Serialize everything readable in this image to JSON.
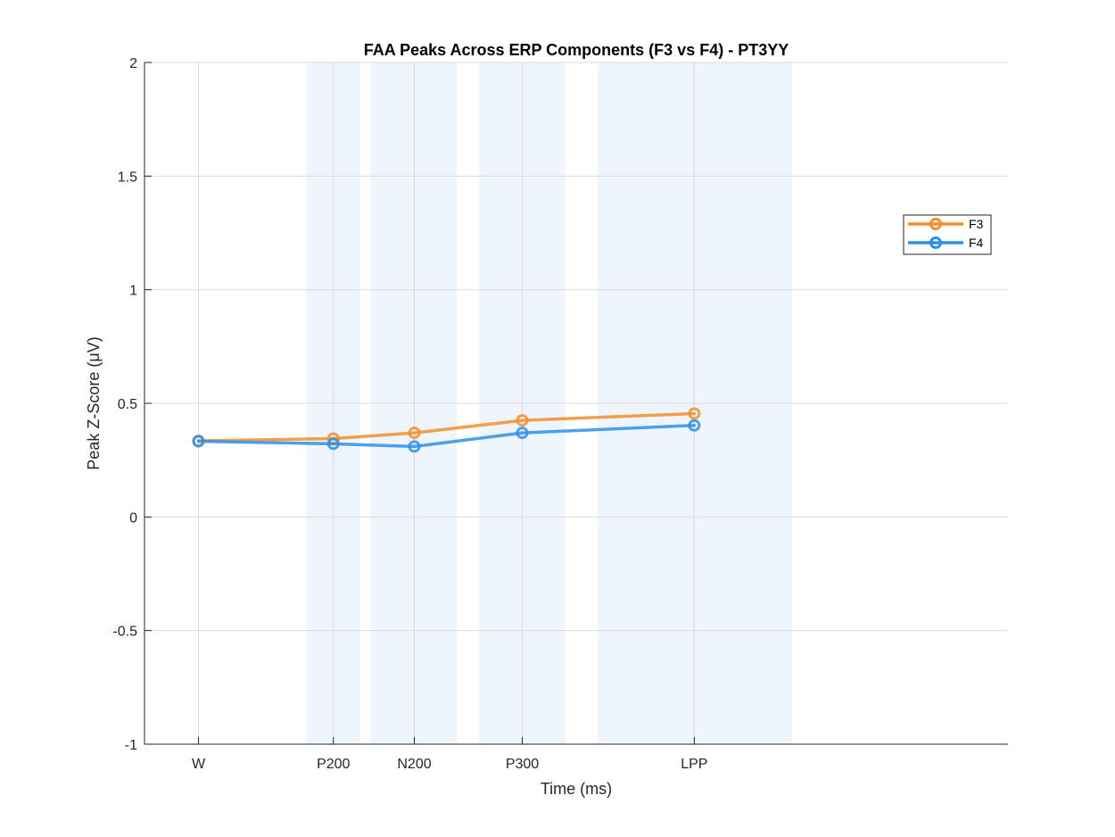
{
  "chart_data": {
    "type": "line",
    "title": "FAA Peaks Across ERP Components (F3 vs F4) - PT3YY",
    "xlabel": "Time (ms)",
    "ylabel": "Peak Z-Score (μV)",
    "categories": [
      "W",
      "P200",
      "N200",
      "P300",
      "LPP"
    ],
    "x": [
      0,
      200,
      320,
      480,
      735
    ],
    "xlim": [
      -80,
      1200
    ],
    "ylim": [
      -1,
      2
    ],
    "yticks": [
      -1,
      -0.5,
      0,
      0.5,
      1,
      1.5,
      2
    ],
    "ytick_labels": [
      "-1",
      "-0.5",
      "0",
      "0.5",
      "1",
      "1.5",
      "2"
    ],
    "grid": true,
    "legend_position": "top-right",
    "shaded_windows": [
      [
        160,
        240
      ],
      [
        255,
        383
      ],
      [
        416,
        543
      ],
      [
        592,
        880
      ]
    ],
    "series": [
      {
        "name": "F3",
        "color": "#f28e2b",
        "values": [
          0.335,
          0.345,
          0.37,
          0.425,
          0.455
        ]
      },
      {
        "name": "F4",
        "color": "#2e8fe8",
        "values": [
          0.333,
          0.322,
          0.31,
          0.37,
          0.403
        ]
      }
    ],
    "shade_color": "#eef5fc"
  }
}
